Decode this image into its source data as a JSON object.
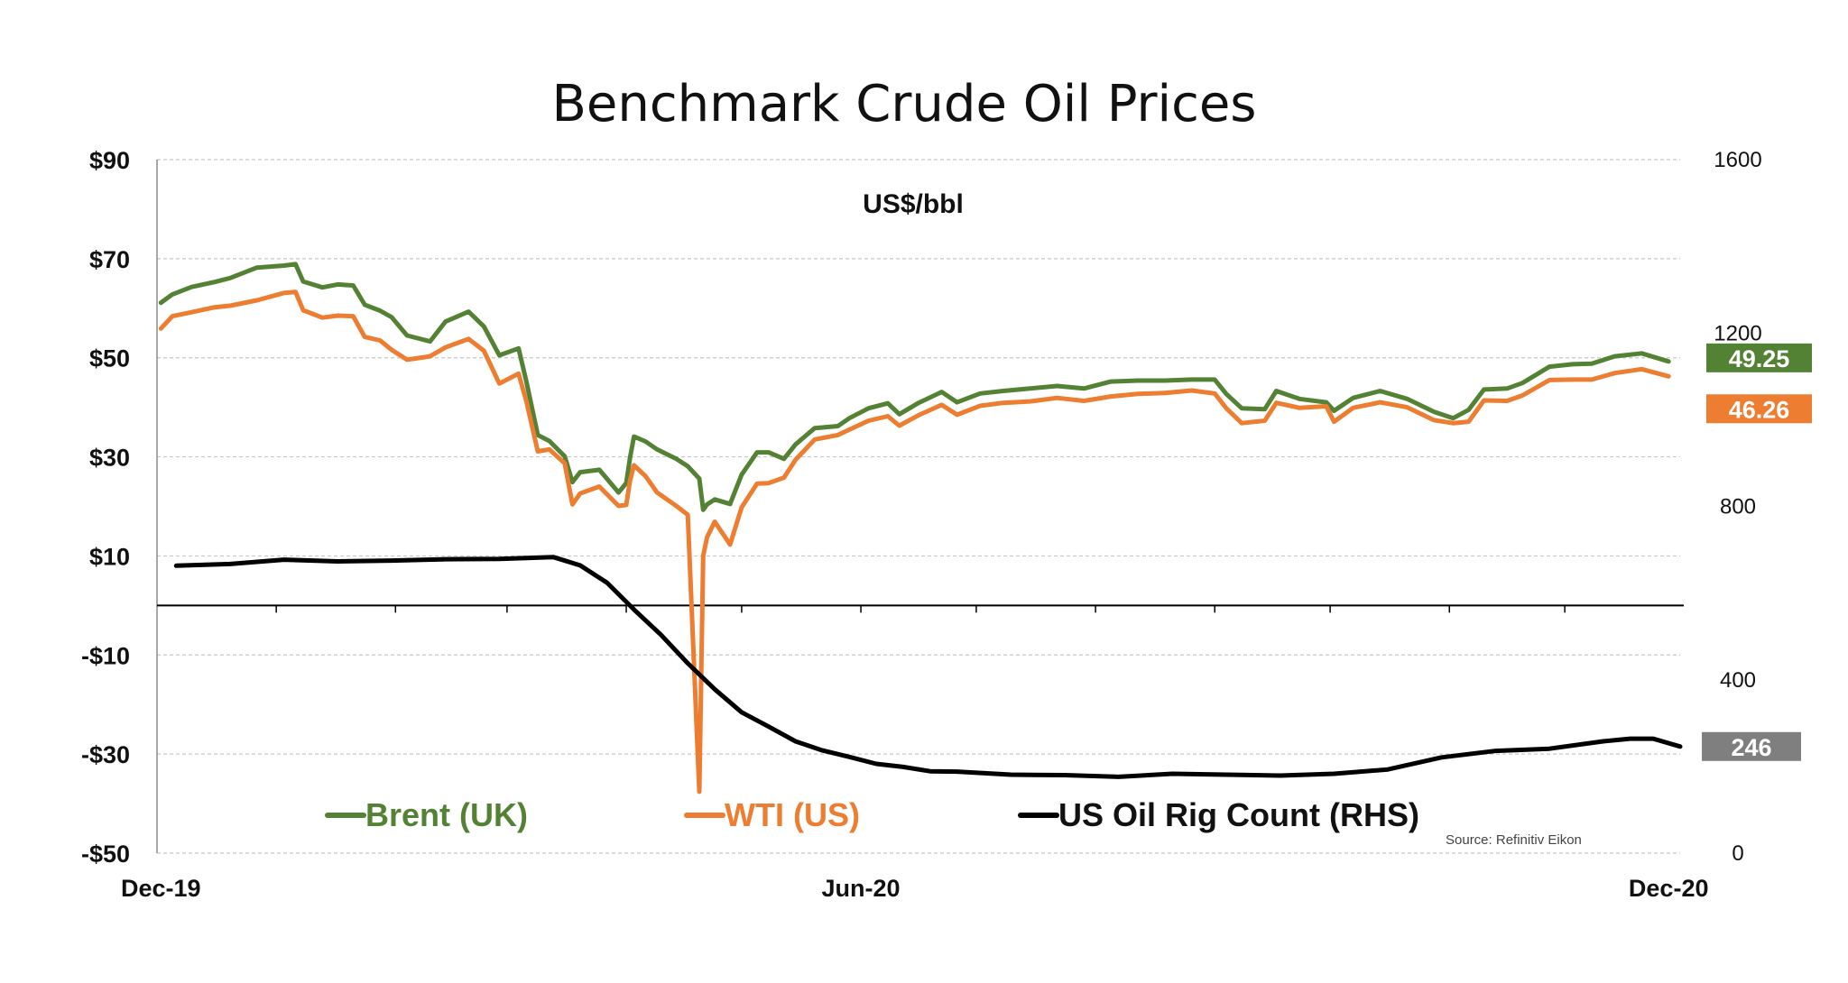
{
  "chart_data": {
    "type": "line",
    "title": "Benchmark Crude Oil Prices",
    "unit_label": "US$/bbl",
    "source": "Source: Refinitiv Eikon",
    "x_range": [
      "2019-12-01",
      "2020-12-31"
    ],
    "x_ticks": [
      {
        "label": "Dec-19",
        "date": "2019-12-02"
      },
      {
        "label": "Jun-20",
        "date": "2020-06-01"
      },
      {
        "label": "Dec-20",
        "date": "2020-12-28"
      }
    ],
    "y_left": {
      "range": [
        -50,
        90
      ],
      "ticks": [
        90,
        70,
        50,
        30,
        10,
        -10,
        -30,
        -50
      ],
      "tick_labels": [
        "$90",
        "$70",
        "$50",
        "$30",
        "$10",
        "-$10",
        "-$30",
        "-$50"
      ]
    },
    "y_right": {
      "range": [
        0,
        1600
      ],
      "ticks": [
        1600,
        1200,
        800,
        400,
        0
      ],
      "tick_labels": [
        "1600",
        "1200",
        "800",
        "400",
        "0"
      ]
    },
    "grid": true,
    "legend_position": "bottom",
    "series": [
      {
        "name": "Brent (UK)",
        "axis": "left",
        "color": "#548235",
        "end_label": "49.25",
        "points": [
          [
            "2019-12-02",
            61.1
          ],
          [
            "2019-12-05",
            62.8
          ],
          [
            "2019-12-10",
            64.3
          ],
          [
            "2019-12-16",
            65.3
          ],
          [
            "2019-12-20",
            66.1
          ],
          [
            "2019-12-27",
            68.2
          ],
          [
            "2020-01-03",
            68.6
          ],
          [
            "2020-01-06",
            68.9
          ],
          [
            "2020-01-08",
            65.4
          ],
          [
            "2020-01-13",
            64.2
          ],
          [
            "2020-01-17",
            64.8
          ],
          [
            "2020-01-21",
            64.6
          ],
          [
            "2020-01-24",
            60.7
          ],
          [
            "2020-01-28",
            59.5
          ],
          [
            "2020-01-31",
            58.2
          ],
          [
            "2020-02-04",
            54.5
          ],
          [
            "2020-02-10",
            53.3
          ],
          [
            "2020-02-14",
            57.3
          ],
          [
            "2020-02-20",
            59.3
          ],
          [
            "2020-02-24",
            56.3
          ],
          [
            "2020-02-28",
            50.5
          ],
          [
            "2020-03-04",
            51.9
          ],
          [
            "2020-03-06",
            45.3
          ],
          [
            "2020-03-09",
            34.4
          ],
          [
            "2020-03-12",
            33.2
          ],
          [
            "2020-03-16",
            30.1
          ],
          [
            "2020-03-18",
            24.9
          ],
          [
            "2020-03-20",
            26.9
          ],
          [
            "2020-03-25",
            27.4
          ],
          [
            "2020-03-30",
            22.8
          ],
          [
            "2020-04-01",
            24.7
          ],
          [
            "2020-04-02",
            29.9
          ],
          [
            "2020-04-03",
            34.1
          ],
          [
            "2020-04-06",
            33.1
          ],
          [
            "2020-04-09",
            31.5
          ],
          [
            "2020-04-14",
            29.6
          ],
          [
            "2020-04-17",
            28.1
          ],
          [
            "2020-04-20",
            25.6
          ],
          [
            "2020-04-21",
            19.3
          ],
          [
            "2020-04-22",
            20.4
          ],
          [
            "2020-04-24",
            21.4
          ],
          [
            "2020-04-28",
            20.5
          ],
          [
            "2020-05-01",
            26.4
          ],
          [
            "2020-05-05",
            30.9
          ],
          [
            "2020-05-08",
            30.9
          ],
          [
            "2020-05-12",
            29.6
          ],
          [
            "2020-05-15",
            32.5
          ],
          [
            "2020-05-20",
            35.8
          ],
          [
            "2020-05-26",
            36.2
          ],
          [
            "2020-05-29",
            37.8
          ],
          [
            "2020-06-03",
            39.8
          ],
          [
            "2020-06-08",
            40.8
          ],
          [
            "2020-06-11",
            38.6
          ],
          [
            "2020-06-16",
            40.9
          ],
          [
            "2020-06-22",
            43.1
          ],
          [
            "2020-06-26",
            41.0
          ],
          [
            "2020-07-02",
            42.8
          ],
          [
            "2020-07-08",
            43.3
          ],
          [
            "2020-07-15",
            43.8
          ],
          [
            "2020-07-22",
            44.3
          ],
          [
            "2020-07-29",
            43.8
          ],
          [
            "2020-08-05",
            45.2
          ],
          [
            "2020-08-12",
            45.4
          ],
          [
            "2020-08-19",
            45.4
          ],
          [
            "2020-08-26",
            45.6
          ],
          [
            "2020-09-01",
            45.6
          ],
          [
            "2020-09-04",
            42.7
          ],
          [
            "2020-09-08",
            39.8
          ],
          [
            "2020-09-14",
            39.6
          ],
          [
            "2020-09-17",
            43.3
          ],
          [
            "2020-09-23",
            41.7
          ],
          [
            "2020-09-30",
            41.0
          ],
          [
            "2020-10-02",
            39.3
          ],
          [
            "2020-10-07",
            41.9
          ],
          [
            "2020-10-14",
            43.3
          ],
          [
            "2020-10-21",
            41.7
          ],
          [
            "2020-10-28",
            39.1
          ],
          [
            "2020-11-02",
            37.8
          ],
          [
            "2020-11-06",
            39.5
          ],
          [
            "2020-11-10",
            43.6
          ],
          [
            "2020-11-16",
            43.8
          ],
          [
            "2020-11-20",
            44.9
          ],
          [
            "2020-11-27",
            48.2
          ],
          [
            "2020-12-03",
            48.7
          ],
          [
            "2020-12-08",
            48.8
          ],
          [
            "2020-12-14",
            50.3
          ],
          [
            "2020-12-21",
            50.9
          ],
          [
            "2020-12-28",
            49.25
          ]
        ]
      },
      {
        "name": "WTI (US)",
        "axis": "left",
        "color": "#ED7D31",
        "end_label": "46.26",
        "points": [
          [
            "2019-12-02",
            55.9
          ],
          [
            "2019-12-05",
            58.4
          ],
          [
            "2019-12-10",
            59.2
          ],
          [
            "2019-12-16",
            60.2
          ],
          [
            "2019-12-20",
            60.5
          ],
          [
            "2019-12-27",
            61.6
          ],
          [
            "2020-01-03",
            63.1
          ],
          [
            "2020-01-06",
            63.3
          ],
          [
            "2020-01-08",
            59.6
          ],
          [
            "2020-01-13",
            58.1
          ],
          [
            "2020-01-17",
            58.5
          ],
          [
            "2020-01-21",
            58.4
          ],
          [
            "2020-01-24",
            54.2
          ],
          [
            "2020-01-28",
            53.5
          ],
          [
            "2020-01-31",
            51.6
          ],
          [
            "2020-02-04",
            49.6
          ],
          [
            "2020-02-10",
            50.3
          ],
          [
            "2020-02-14",
            52.1
          ],
          [
            "2020-02-20",
            53.8
          ],
          [
            "2020-02-24",
            51.4
          ],
          [
            "2020-02-28",
            44.8
          ],
          [
            "2020-03-04",
            46.8
          ],
          [
            "2020-03-06",
            41.3
          ],
          [
            "2020-03-09",
            31.1
          ],
          [
            "2020-03-12",
            31.5
          ],
          [
            "2020-03-16",
            28.7
          ],
          [
            "2020-03-18",
            20.4
          ],
          [
            "2020-03-20",
            22.6
          ],
          [
            "2020-03-25",
            24.0
          ],
          [
            "2020-03-30",
            20.1
          ],
          [
            "2020-04-01",
            20.3
          ],
          [
            "2020-04-02",
            25.3
          ],
          [
            "2020-04-03",
            28.3
          ],
          [
            "2020-04-06",
            26.1
          ],
          [
            "2020-04-09",
            22.8
          ],
          [
            "2020-04-14",
            20.1
          ],
          [
            "2020-04-17",
            18.3
          ],
          [
            "2020-04-20",
            -37.6
          ],
          [
            "2020-04-21",
            10.0
          ],
          [
            "2020-04-22",
            13.8
          ],
          [
            "2020-04-24",
            16.9
          ],
          [
            "2020-04-28",
            12.3
          ],
          [
            "2020-05-01",
            19.8
          ],
          [
            "2020-05-05",
            24.6
          ],
          [
            "2020-05-08",
            24.7
          ],
          [
            "2020-05-12",
            25.8
          ],
          [
            "2020-05-15",
            29.4
          ],
          [
            "2020-05-20",
            33.5
          ],
          [
            "2020-05-26",
            34.4
          ],
          [
            "2020-05-29",
            35.5
          ],
          [
            "2020-06-03",
            37.3
          ],
          [
            "2020-06-08",
            38.2
          ],
          [
            "2020-06-11",
            36.3
          ],
          [
            "2020-06-16",
            38.4
          ],
          [
            "2020-06-22",
            40.5
          ],
          [
            "2020-06-26",
            38.5
          ],
          [
            "2020-07-02",
            40.3
          ],
          [
            "2020-07-08",
            40.9
          ],
          [
            "2020-07-15",
            41.2
          ],
          [
            "2020-07-22",
            41.9
          ],
          [
            "2020-07-29",
            41.3
          ],
          [
            "2020-08-05",
            42.2
          ],
          [
            "2020-08-12",
            42.7
          ],
          [
            "2020-08-19",
            42.9
          ],
          [
            "2020-08-26",
            43.4
          ],
          [
            "2020-09-01",
            42.8
          ],
          [
            "2020-09-04",
            39.8
          ],
          [
            "2020-09-08",
            36.8
          ],
          [
            "2020-09-14",
            37.3
          ],
          [
            "2020-09-17",
            40.9
          ],
          [
            "2020-09-23",
            39.9
          ],
          [
            "2020-09-30",
            40.2
          ],
          [
            "2020-10-02",
            37.1
          ],
          [
            "2020-10-07",
            39.9
          ],
          [
            "2020-10-14",
            41.0
          ],
          [
            "2020-10-21",
            40.0
          ],
          [
            "2020-10-28",
            37.4
          ],
          [
            "2020-11-02",
            36.8
          ],
          [
            "2020-11-06",
            37.1
          ],
          [
            "2020-11-10",
            41.4
          ],
          [
            "2020-11-16",
            41.3
          ],
          [
            "2020-11-20",
            42.4
          ],
          [
            "2020-11-27",
            45.5
          ],
          [
            "2020-12-03",
            45.6
          ],
          [
            "2020-12-08",
            45.6
          ],
          [
            "2020-12-14",
            46.9
          ],
          [
            "2020-12-21",
            47.7
          ],
          [
            "2020-12-28",
            46.26
          ]
        ]
      },
      {
        "name": "US Oil Rig Count (RHS)",
        "axis": "right",
        "color": "#000000",
        "end_label": "246",
        "points": [
          [
            "2019-12-06",
            663
          ],
          [
            "2019-12-20",
            667
          ],
          [
            "2020-01-03",
            677
          ],
          [
            "2020-01-17",
            673
          ],
          [
            "2020-01-31",
            675
          ],
          [
            "2020-02-14",
            678
          ],
          [
            "2020-02-28",
            679
          ],
          [
            "2020-03-13",
            683
          ],
          [
            "2020-03-20",
            664
          ],
          [
            "2020-03-27",
            624
          ],
          [
            "2020-04-03",
            562
          ],
          [
            "2020-04-10",
            504
          ],
          [
            "2020-04-17",
            438
          ],
          [
            "2020-04-24",
            378
          ],
          [
            "2020-05-01",
            325
          ],
          [
            "2020-05-08",
            292
          ],
          [
            "2020-05-15",
            258
          ],
          [
            "2020-05-22",
            237
          ],
          [
            "2020-05-29",
            222
          ],
          [
            "2020-06-05",
            206
          ],
          [
            "2020-06-12",
            199
          ],
          [
            "2020-06-19",
            189
          ],
          [
            "2020-06-26",
            188
          ],
          [
            "2020-07-10",
            181
          ],
          [
            "2020-07-24",
            180
          ],
          [
            "2020-08-07",
            176
          ],
          [
            "2020-08-21",
            183
          ],
          [
            "2020-09-04",
            181
          ],
          [
            "2020-09-18",
            179
          ],
          [
            "2020-10-02",
            183
          ],
          [
            "2020-10-16",
            193
          ],
          [
            "2020-10-30",
            221
          ],
          [
            "2020-11-13",
            236
          ],
          [
            "2020-11-27",
            241
          ],
          [
            "2020-12-11",
            258
          ],
          [
            "2020-12-18",
            264
          ],
          [
            "2020-12-24",
            264
          ],
          [
            "2020-12-31",
            246
          ]
        ]
      }
    ]
  }
}
